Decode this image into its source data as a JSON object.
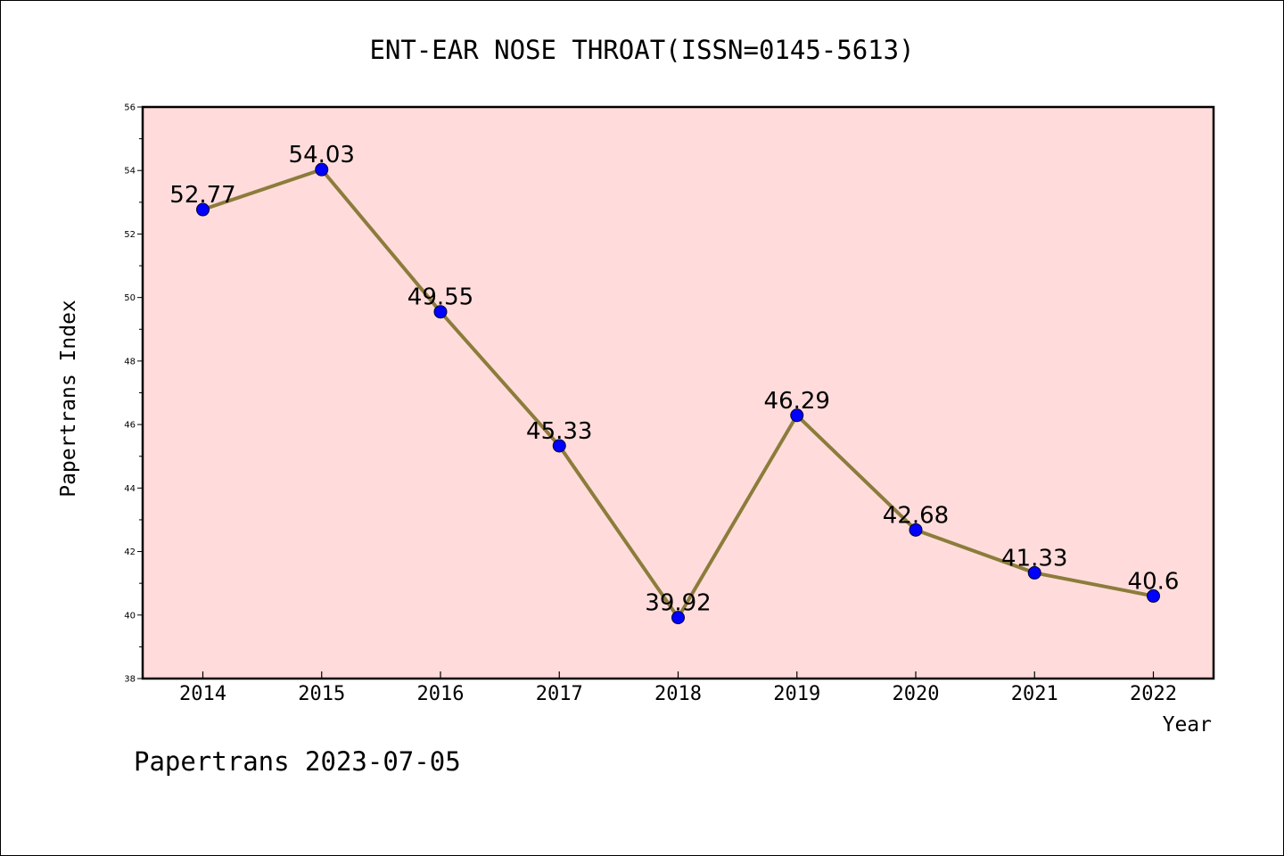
{
  "chart_data": {
    "type": "line",
    "title": "ENT-EAR NOSE THROAT(ISSN=0145-5613)",
    "xlabel": "Year",
    "ylabel": "Papertrans Index",
    "categories": [
      "2014",
      "2015",
      "2016",
      "2017",
      "2018",
      "2019",
      "2020",
      "2021",
      "2022"
    ],
    "values": [
      52.77,
      54.03,
      49.55,
      45.33,
      39.92,
      46.29,
      42.68,
      41.33,
      40.6
    ],
    "data_labels": [
      "52.77",
      "54.03",
      "49.55",
      "45.33",
      "39.92",
      "46.29",
      "42.68",
      "41.33",
      "40.6"
    ],
    "ylim": [
      38,
      56
    ],
    "yticks": [
      38,
      40,
      42,
      44,
      46,
      48,
      50,
      52,
      54,
      56
    ],
    "grid": false,
    "legend": "none",
    "colors": {
      "plot_background": "#ffdcdb",
      "line": "#8c7c3c",
      "marker": "#0000ff",
      "axis": "#000000"
    }
  },
  "footer": {
    "text": "Papertrans 2023-07-05"
  }
}
